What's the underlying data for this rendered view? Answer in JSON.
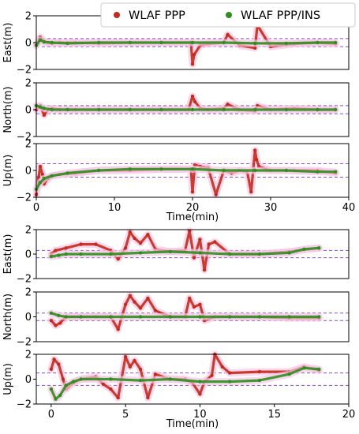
{
  "colors": {
    "ppp": "#c62a1b",
    "ins": "#2e8f1e",
    "bound": "#8a4dd1"
  },
  "legend": [
    {
      "label": "WLAF PPP",
      "color": "#c62a1b"
    },
    {
      "label": "WLAF PPP/INS",
      "color": "#2e8f1e"
    }
  ],
  "chart_data": [
    {
      "type": "scatter",
      "group": "top",
      "ylabel": "East(m)",
      "ylim": [
        -2,
        2
      ],
      "yticks": [
        "2",
        "0",
        "−2"
      ],
      "xlim": [
        0,
        40
      ],
      "xticks": [],
      "bounds": [
        0.3,
        -0.3
      ],
      "series": [
        {
          "name": "WLAF PPP",
          "key": "ppp",
          "x": [
            0,
            0.5,
            1,
            1.5,
            2,
            3,
            5,
            8,
            12,
            16,
            19.8,
            20,
            20.2,
            21,
            22,
            24,
            24.5,
            26,
            28,
            28.3,
            30,
            33,
            36,
            38.3
          ],
          "y": [
            -0.2,
            0.4,
            0.1,
            0.0,
            -0.05,
            0.0,
            0.0,
            -0.05,
            0.0,
            0.0,
            0.0,
            -1.6,
            -0.9,
            -0.2,
            -0.1,
            0.0,
            0.6,
            -0.2,
            -0.4,
            1.3,
            -0.3,
            -0.1,
            0.0,
            -0.1
          ]
        },
        {
          "name": "WLAF PPP/INS",
          "key": "ins",
          "x": [
            0,
            0.5,
            1,
            2,
            4,
            8,
            12,
            16,
            20,
            24,
            28,
            32,
            36,
            38.3
          ],
          "y": [
            -0.2,
            0.2,
            0.05,
            0.0,
            -0.05,
            0.0,
            0.0,
            0.0,
            0.0,
            0.0,
            -0.05,
            -0.05,
            0.0,
            0.0
          ]
        }
      ]
    },
    {
      "type": "scatter",
      "group": "top",
      "ylabel": "North(m)",
      "ylim": [
        -2,
        2
      ],
      "yticks": [
        "2",
        "0",
        "−2"
      ],
      "xlim": [
        0,
        40
      ],
      "xticks": [],
      "bounds": [
        0.3,
        -0.3
      ],
      "series": [
        {
          "name": "WLAF PPP",
          "key": "ppp",
          "x": [
            0,
            0.5,
            1,
            1.5,
            2,
            3,
            5,
            8,
            12,
            16,
            19.5,
            20,
            20.3,
            21,
            22,
            24,
            24.5,
            26,
            28,
            28.3,
            30,
            33,
            36,
            38.3
          ],
          "y": [
            0.0,
            0.3,
            -0.4,
            0.0,
            0.1,
            0.0,
            0.0,
            0.0,
            0.0,
            0.0,
            0.0,
            1.0,
            0.6,
            0.1,
            0.0,
            0.1,
            0.4,
            0.0,
            -0.1,
            0.3,
            0.0,
            0.1,
            0.0,
            0.0
          ]
        },
        {
          "name": "WLAF PPP/INS",
          "key": "ins",
          "x": [
            0,
            0.5,
            1,
            2,
            4,
            8,
            12,
            16,
            20,
            24,
            28,
            32,
            36,
            38.3
          ],
          "y": [
            0.3,
            0.2,
            0.1,
            0.0,
            0.0,
            0.0,
            0.0,
            0.0,
            0.0,
            0.0,
            0.0,
            0.0,
            0.0,
            0.0
          ]
        }
      ]
    },
    {
      "type": "scatter",
      "group": "top",
      "ylabel": "Up(m)",
      "xlabel": "Time(min)",
      "ylim": [
        -2,
        2
      ],
      "yticks": [
        "2",
        "0",
        "−2"
      ],
      "xlim": [
        0,
        40
      ],
      "xticks": [
        "0",
        "10",
        "20",
        "30",
        "40"
      ],
      "bounds": [
        0.5,
        -0.5
      ],
      "series": [
        {
          "name": "WLAF PPP",
          "key": "ppp",
          "x": [
            0,
            0.3,
            0.5,
            0.8,
            1,
            1.5,
            2,
            3,
            5,
            8,
            12,
            16,
            19.8,
            20,
            20.3,
            21,
            22,
            23,
            24,
            25,
            26,
            27,
            27.5,
            28,
            28.2,
            28.5,
            30,
            33,
            36,
            38.3
          ],
          "y": [
            -1.8,
            -0.5,
            0.3,
            -0.3,
            -1.0,
            -0.6,
            -0.4,
            -0.3,
            -0.2,
            0.0,
            0.0,
            0.1,
            0.1,
            -1.6,
            0.4,
            0.3,
            0.2,
            -1.8,
            0.0,
            -0.2,
            0.0,
            -0.1,
            -1.6,
            1.5,
            0.8,
            0.3,
            0.0,
            0.0,
            0.0,
            -0.2
          ]
        },
        {
          "name": "WLAF PPP/INS",
          "key": "ins",
          "x": [
            0,
            0.5,
            1,
            2,
            4,
            8,
            12,
            16,
            20,
            24,
            28,
            32,
            36,
            38.3
          ],
          "y": [
            -1.4,
            -0.9,
            -0.6,
            -0.4,
            -0.2,
            0.0,
            0.1,
            0.1,
            0.1,
            0.0,
            0.0,
            0.0,
            -0.1,
            -0.1
          ]
        }
      ]
    },
    {
      "type": "scatter",
      "group": "bottom",
      "ylabel": "East(m)",
      "ylim": [
        -2,
        2
      ],
      "yticks": [
        "2",
        "0",
        "−2"
      ],
      "xlim": [
        -1,
        20
      ],
      "xticks": [],
      "bounds": [
        0.3,
        -0.3
      ],
      "series": [
        {
          "name": "WLAF PPP",
          "key": "ppp",
          "x": [
            0,
            0.3,
            1,
            2,
            3,
            4,
            4.5,
            5,
            5.3,
            5.6,
            6,
            6.5,
            7,
            8,
            9,
            9.3,
            9.6,
            10,
            10.3,
            10.6,
            11,
            12,
            14,
            16,
            18
          ],
          "y": [
            0.0,
            0.3,
            0.5,
            0.8,
            0.8,
            0.3,
            -0.4,
            0.5,
            1.8,
            1.3,
            0.9,
            1.6,
            0.4,
            0.2,
            0.3,
            1.9,
            -0.3,
            1.2,
            -1.3,
            0.8,
            1.0,
            0.0,
            0.0,
            0.2,
            0.5
          ]
        },
        {
          "name": "WLAF PPP/INS",
          "key": "ins",
          "x": [
            0,
            0.5,
            1,
            2,
            4,
            6,
            8,
            10,
            12,
            14,
            16,
            17,
            18
          ],
          "y": [
            -0.2,
            -0.1,
            0.0,
            0.0,
            0.0,
            0.1,
            0.2,
            0.1,
            0.0,
            0.0,
            0.1,
            0.4,
            0.5
          ]
        }
      ]
    },
    {
      "type": "scatter",
      "group": "bottom",
      "ylabel": "North(m)",
      "ylim": [
        -2,
        2
      ],
      "yticks": [
        "2",
        "0",
        "−2"
      ],
      "xlim": [
        -1,
        20
      ],
      "xticks": [],
      "bounds": [
        0.3,
        -0.3
      ],
      "series": [
        {
          "name": "WLAF PPP",
          "key": "ppp",
          "x": [
            0,
            0.3,
            0.6,
            1,
            2,
            3,
            4,
            4.5,
            5,
            5.3,
            5.6,
            6,
            6.5,
            7,
            8,
            9,
            9.3,
            9.6,
            10,
            10.3,
            11,
            12,
            14,
            16,
            18
          ],
          "y": [
            -0.3,
            -0.7,
            -0.5,
            0.0,
            0.0,
            0.0,
            0.0,
            -1.0,
            1.0,
            1.7,
            1.2,
            0.7,
            1.5,
            0.5,
            0.0,
            0.0,
            1.5,
            0.8,
            1.0,
            -0.3,
            0.0,
            0.0,
            0.0,
            -0.1,
            -0.1
          ]
        },
        {
          "name": "WLAF PPP/INS",
          "key": "ins",
          "x": [
            0,
            0.5,
            1,
            2,
            4,
            6,
            8,
            10,
            12,
            14,
            16,
            18
          ],
          "y": [
            0.3,
            0.1,
            0.0,
            0.0,
            0.0,
            0.0,
            0.0,
            0.0,
            0.0,
            0.0,
            0.0,
            0.0
          ]
        }
      ]
    },
    {
      "type": "scatter",
      "group": "bottom",
      "ylabel": "Up(m)",
      "xlabel": "Time(min)",
      "ylim": [
        -2,
        2
      ],
      "yticks": [
        "2",
        "0",
        "−2"
      ],
      "xlim": [
        -1,
        20
      ],
      "xticks": [
        "0",
        "5",
        "10",
        "15",
        "20"
      ],
      "bounds": [
        0.5,
        -0.5
      ],
      "series": [
        {
          "name": "WLAF PPP",
          "key": "ppp",
          "x": [
            0,
            0.2,
            0.5,
            0.8,
            1,
            1.5,
            2,
            3,
            3.5,
            4,
            4.5,
            5,
            5.3,
            5.6,
            6,
            6.5,
            7,
            8,
            9,
            9.5,
            10,
            10.3,
            10.8,
            11,
            11.5,
            12,
            14,
            16,
            17,
            18
          ],
          "y": [
            0.8,
            1.6,
            1.2,
            0.0,
            -0.8,
            -0.3,
            0.0,
            0.2,
            -0.4,
            -0.8,
            -1.5,
            1.8,
            1.0,
            1.5,
            0.8,
            -1.5,
            0.4,
            0.0,
            0.0,
            -0.3,
            -1.2,
            -0.2,
            0.3,
            2.0,
            1.0,
            0.5,
            0.6,
            0.6,
            1.0,
            0.7
          ]
        },
        {
          "name": "WLAF PPP/INS",
          "key": "ins",
          "x": [
            0,
            0.3,
            0.6,
            1,
            1.5,
            2,
            4,
            6,
            8,
            10,
            12,
            14,
            16,
            17,
            18
          ],
          "y": [
            -0.8,
            -1.6,
            -1.3,
            -0.5,
            -0.2,
            0.0,
            0.0,
            -0.1,
            0.0,
            -0.2,
            -0.2,
            -0.1,
            0.4,
            0.9,
            0.8
          ]
        }
      ]
    }
  ]
}
